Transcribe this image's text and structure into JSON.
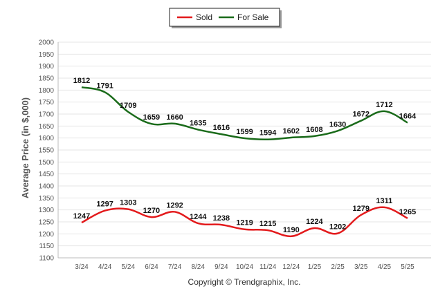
{
  "chart_data": {
    "type": "line",
    "title": "",
    "xlabel": "",
    "ylabel": "Average Price (in $,000)",
    "categories": [
      "3/24",
      "4/24",
      "5/24",
      "6/24",
      "7/24",
      "8/24",
      "9/24",
      "10/24",
      "11/24",
      "12/24",
      "1/25",
      "2/25",
      "3/25",
      "4/25",
      "5/25"
    ],
    "ylim": [
      1100,
      2000
    ],
    "yticks": [
      1100,
      1150,
      1200,
      1250,
      1300,
      1350,
      1400,
      1450,
      1500,
      1550,
      1600,
      1650,
      1700,
      1750,
      1800,
      1850,
      1900,
      1950,
      2000
    ],
    "grid": true,
    "legend_position": "top-center",
    "series": [
      {
        "name": "Sold",
        "color": "#e31a1c",
        "values": [
          1247,
          1297,
          1303,
          1270,
          1292,
          1244,
          1238,
          1219,
          1215,
          1190,
          1224,
          1202,
          1279,
          1311,
          1265
        ]
      },
      {
        "name": "For Sale",
        "color": "#1a6b1a",
        "values": [
          1812,
          1791,
          1709,
          1659,
          1660,
          1635,
          1616,
          1599,
          1594,
          1602,
          1608,
          1630,
          1672,
          1712,
          1664
        ]
      }
    ]
  },
  "credit": "Copyright © Trendgraphix, Inc."
}
